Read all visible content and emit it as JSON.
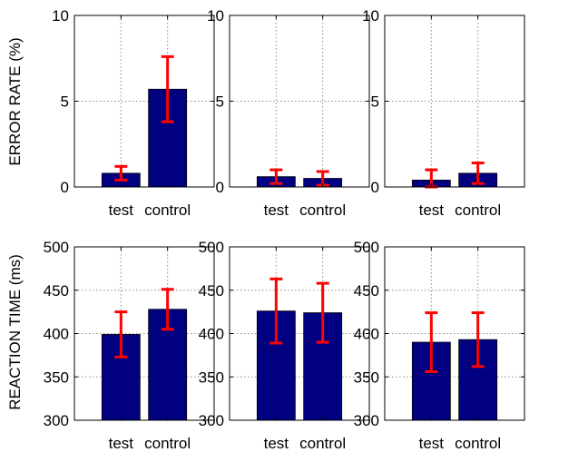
{
  "colors": {
    "bar": "#000080",
    "errorbar": "#ff0000",
    "grid": "#8c8c8c",
    "axes": "#000000"
  },
  "row_labels": {
    "top": "ERROR RATE (%)",
    "bottom": "REACTION TIME (ms)"
  },
  "chart_data": [
    {
      "type": "bar",
      "row": 0,
      "col": 0,
      "title": "",
      "xlabel": "",
      "ylabel": "ERROR RATE (%)",
      "categories": [
        "test",
        "control"
      ],
      "values": [
        0.8,
        5.7
      ],
      "errors": [
        0.4,
        1.9
      ],
      "ylim": [
        0,
        10
      ],
      "yticks": [
        0,
        5,
        10
      ],
      "grid": true
    },
    {
      "type": "bar",
      "row": 0,
      "col": 1,
      "title": "",
      "xlabel": "",
      "ylabel": "",
      "categories": [
        "test",
        "control"
      ],
      "values": [
        0.6,
        0.5
      ],
      "errors": [
        0.4,
        0.4
      ],
      "ylim": [
        0,
        10
      ],
      "yticks": [
        0,
        5,
        10
      ],
      "grid": true
    },
    {
      "type": "bar",
      "row": 0,
      "col": 2,
      "title": "",
      "xlabel": "",
      "ylabel": "",
      "categories": [
        "test",
        "control"
      ],
      "values": [
        0.4,
        0.8
      ],
      "errors": [
        0.6,
        0.6
      ],
      "ylim": [
        0,
        10
      ],
      "yticks": [
        0,
        5,
        10
      ],
      "grid": true
    },
    {
      "type": "bar",
      "row": 1,
      "col": 0,
      "title": "",
      "xlabel": "",
      "ylabel": "REACTION TIME (ms)",
      "categories": [
        "test",
        "control"
      ],
      "values": [
        399,
        428
      ],
      "errors": [
        26,
        23
      ],
      "ylim": [
        300,
        500
      ],
      "yticks": [
        300,
        350,
        400,
        450,
        500
      ],
      "grid": true
    },
    {
      "type": "bar",
      "row": 1,
      "col": 1,
      "title": "",
      "xlabel": "",
      "ylabel": "",
      "categories": [
        "test",
        "control"
      ],
      "values": [
        426,
        424
      ],
      "errors": [
        37,
        34
      ],
      "ylim": [
        300,
        500
      ],
      "yticks": [
        300,
        350,
        400,
        450,
        500
      ],
      "grid": true
    },
    {
      "type": "bar",
      "row": 1,
      "col": 2,
      "title": "",
      "xlabel": "",
      "ylabel": "",
      "categories": [
        "test",
        "control"
      ],
      "values": [
        390,
        393
      ],
      "errors": [
        34,
        31
      ],
      "ylim": [
        300,
        500
      ],
      "yticks": [
        300,
        350,
        400,
        450,
        500
      ],
      "grid": true
    }
  ]
}
